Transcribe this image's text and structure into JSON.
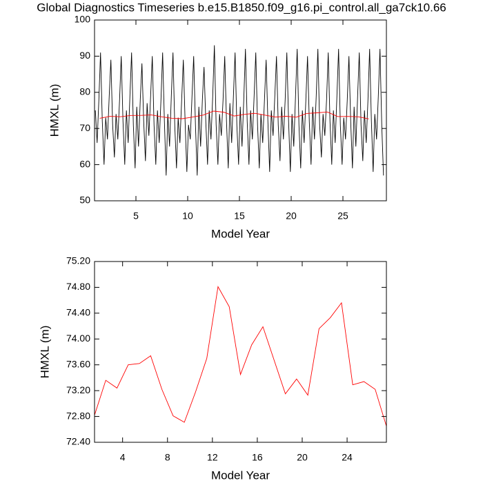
{
  "chart_data": [
    {
      "type": "line",
      "title": "Global Diagnostics Timeseries b.e15.B1850.f09_g16.pi_control.all_ga7ck10.66",
      "x_label": "Model Year",
      "y_label": "HMXL (m)",
      "xlim": [
        1,
        29.2
      ],
      "ylim": [
        50,
        100
      ],
      "xticks": [
        5,
        10,
        15,
        20,
        25
      ],
      "yticks": [
        50,
        60,
        70,
        80,
        90,
        100
      ],
      "series": [
        {
          "color": "#000000",
          "x": [
            1.08,
            1.25,
            1.42,
            1.58,
            1.75,
            1.92,
            2.08,
            2.25,
            2.42,
            2.58,
            2.75,
            2.92,
            3.08,
            3.25,
            3.42,
            3.58,
            3.75,
            3.92,
            4.08,
            4.25,
            4.42,
            4.58,
            4.75,
            4.92,
            5.08,
            5.25,
            5.42,
            5.58,
            5.75,
            5.92,
            6.08,
            6.25,
            6.42,
            6.58,
            6.75,
            6.92,
            7.08,
            7.25,
            7.42,
            7.58,
            7.75,
            7.92,
            8.08,
            8.25,
            8.42,
            8.58,
            8.75,
            8.92,
            9.08,
            9.25,
            9.42,
            9.58,
            9.75,
            9.92,
            10.08,
            10.25,
            10.42,
            10.58,
            10.75,
            10.92,
            11.08,
            11.25,
            11.42,
            11.58,
            11.75,
            11.92,
            12.08,
            12.25,
            12.42,
            12.58,
            12.75,
            12.92,
            13.08,
            13.25,
            13.42,
            13.58,
            13.75,
            13.92,
            14.08,
            14.25,
            14.42,
            14.58,
            14.75,
            14.92,
            15.08,
            15.25,
            15.42,
            15.58,
            15.75,
            15.92,
            16.08,
            16.25,
            16.42,
            16.58,
            16.75,
            16.92,
            17.08,
            17.25,
            17.42,
            17.58,
            17.75,
            17.92,
            18.08,
            18.25,
            18.42,
            18.58,
            18.75,
            18.92,
            19.08,
            19.25,
            19.42,
            19.58,
            19.75,
            19.92,
            20.08,
            20.25,
            20.42,
            20.58,
            20.75,
            20.92,
            21.08,
            21.25,
            21.42,
            21.58,
            21.75,
            21.92,
            22.08,
            22.25,
            22.42,
            22.58,
            22.75,
            22.92,
            23.08,
            23.25,
            23.42,
            23.58,
            23.75,
            23.92,
            24.08,
            24.25,
            24.42,
            24.58,
            24.75,
            24.92,
            25.08,
            25.25,
            25.42,
            25.58,
            25.75,
            25.92,
            26.08,
            26.25,
            26.42,
            26.58,
            26.75,
            26.92,
            27.08,
            27.25,
            27.42,
            27.58,
            27.75,
            27.92,
            28.08,
            28.25,
            28.42,
            28.58,
            28.75,
            28.92
          ],
          "values": [
            75,
            66,
            78,
            91,
            72,
            60,
            73,
            67,
            79,
            89,
            71,
            62,
            74,
            67,
            78,
            90,
            72,
            60,
            75,
            66,
            79,
            91,
            71,
            59,
            76,
            65,
            78,
            88,
            72,
            61,
            77,
            68,
            79,
            90,
            71,
            60,
            75,
            66,
            78,
            91,
            72,
            57,
            74,
            65,
            79,
            91,
            71,
            59,
            73,
            66,
            78,
            89,
            72,
            58,
            71,
            67,
            79,
            90,
            71,
            57,
            76,
            65,
            78,
            87,
            72,
            60,
            75,
            67,
            79,
            93,
            71,
            60,
            74,
            68,
            78,
            90,
            72,
            59,
            77,
            66,
            79,
            91,
            71,
            60,
            76,
            65,
            78,
            92,
            72,
            60,
            75,
            67,
            79,
            91,
            71,
            59,
            74,
            66,
            78,
            89,
            72,
            58,
            75,
            68,
            79,
            90,
            71,
            61,
            76,
            67,
            78,
            91,
            72,
            58,
            74,
            65,
            79,
            92,
            71,
            59,
            75,
            66,
            78,
            90,
            72,
            60,
            76,
            67,
            79,
            92,
            71,
            62,
            74,
            68,
            78,
            91,
            72,
            60,
            75,
            66,
            79,
            92,
            71,
            60,
            73,
            67,
            78,
            90,
            72,
            59,
            76,
            65,
            79,
            91,
            71,
            61,
            75,
            66,
            78,
            92,
            72,
            58,
            74,
            67,
            79,
            92,
            71,
            57
          ]
        },
        {
          "color": "#ff0000",
          "x": [
            1.5,
            2.5,
            3.5,
            4.5,
            5.5,
            6.5,
            7.5,
            8.5,
            9.5,
            10.5,
            11.5,
            12.5,
            13.5,
            14.5,
            15.5,
            16.5,
            17.5,
            18.5,
            19.5,
            20.5,
            21.5,
            22.5,
            23.5,
            24.5,
            25.5,
            26.5,
            27.5
          ],
          "values": [
            72.82,
            73.36,
            73.24,
            73.6,
            73.62,
            73.74,
            73.22,
            72.81,
            72.71,
            73.18,
            73.7,
            74.81,
            74.5,
            73.45,
            73.91,
            74.19,
            73.67,
            73.15,
            73.38,
            73.13,
            74.16,
            74.33,
            74.56,
            73.29,
            73.34,
            73.22,
            72.65
          ]
        }
      ]
    },
    {
      "type": "line",
      "x_label": "Model Year",
      "y_label": "HMXL (m)",
      "xlim": [
        1.5,
        27.5
      ],
      "ylim": [
        72.4,
        75.2
      ],
      "xticks": [
        4,
        8,
        12,
        16,
        20,
        24
      ],
      "yticks": [
        {
          "value": 72.4,
          "label": "72.40"
        },
        {
          "value": 72.8,
          "label": "72.80"
        },
        {
          "value": 73.2,
          "label": "73.20"
        },
        {
          "value": 73.6,
          "label": "73.60"
        },
        {
          "value": 74.0,
          "label": "74.00"
        },
        {
          "value": 74.4,
          "label": "74.40"
        },
        {
          "value": 74.8,
          "label": "74.80"
        },
        {
          "value": 75.2,
          "label": "75.20"
        }
      ],
      "series": [
        {
          "color": "#ff0000",
          "x": [
            1.5,
            2.5,
            3.5,
            4.5,
            5.5,
            6.5,
            7.5,
            8.5,
            9.5,
            10.5,
            11.5,
            12.5,
            13.5,
            14.5,
            15.5,
            16.5,
            17.5,
            18.5,
            19.5,
            20.5,
            21.5,
            22.5,
            23.5,
            24.5,
            25.5,
            26.5,
            27.5
          ],
          "values": [
            72.82,
            73.36,
            73.24,
            73.6,
            73.62,
            73.74,
            73.22,
            72.81,
            72.71,
            73.18,
            73.7,
            74.81,
            74.5,
            73.45,
            73.91,
            74.19,
            73.67,
            73.15,
            73.38,
            73.13,
            74.16,
            74.33,
            74.56,
            73.29,
            73.34,
            73.22,
            72.65
          ]
        }
      ]
    }
  ]
}
